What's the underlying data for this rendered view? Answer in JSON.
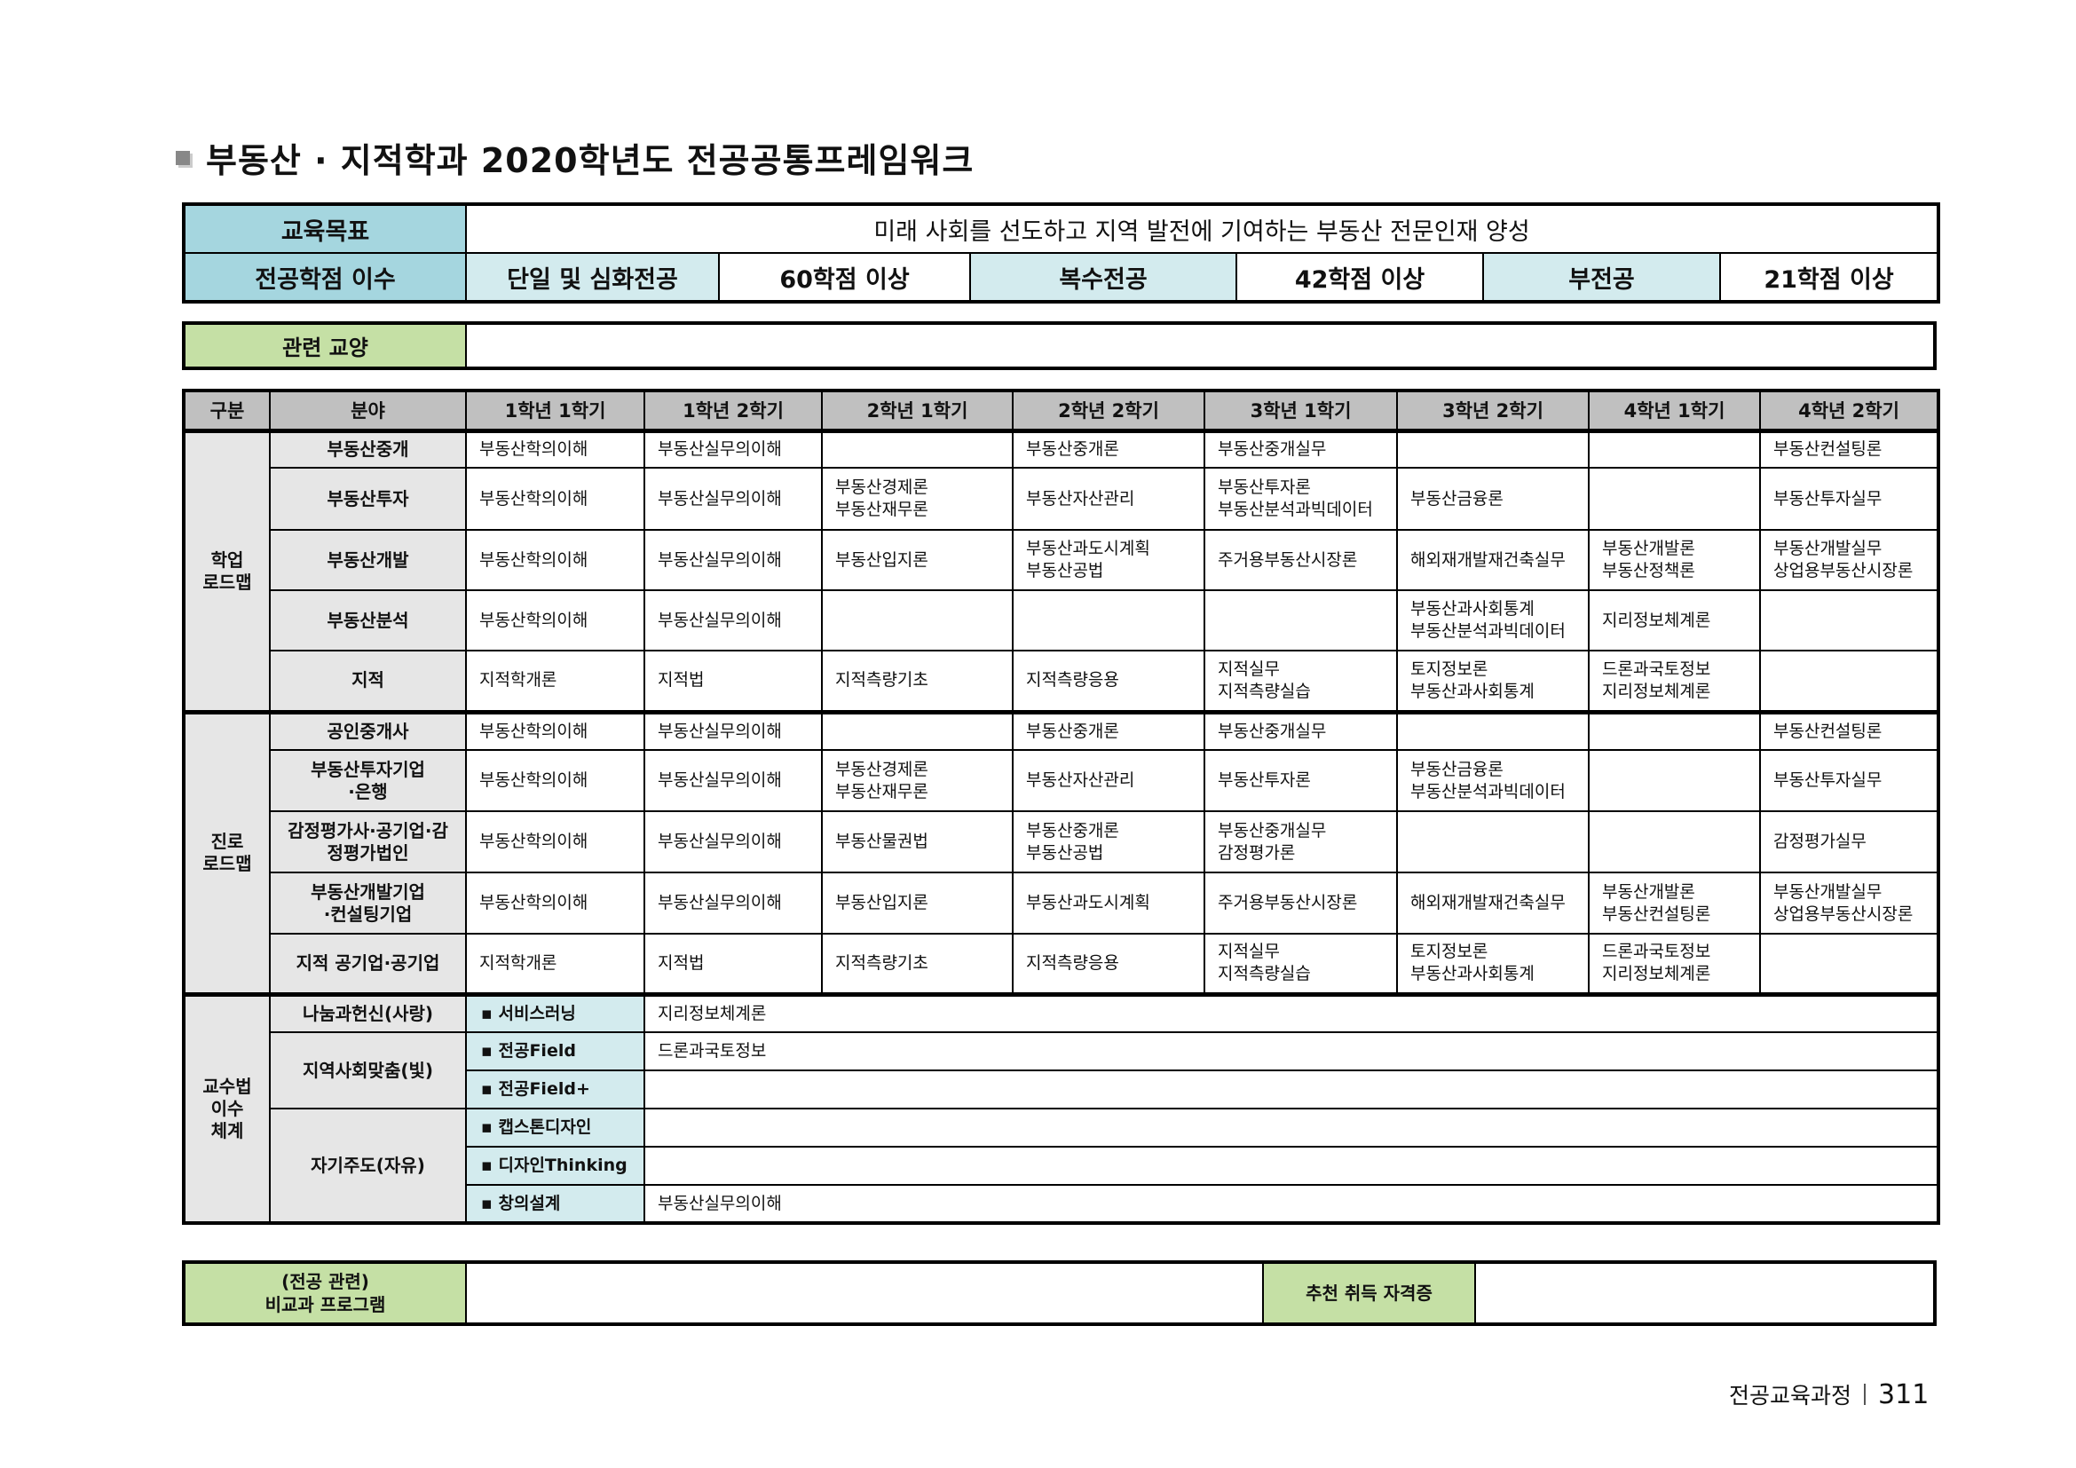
{
  "title": "부동산 · 지적학과 2020학년도 전공공통프레임워크",
  "goal": {
    "label": "교육목표",
    "text": "미래 사회를 선도하고 지역 발전에 기여하는 부동산 전문인재 양성"
  },
  "credits": {
    "label": "전공학점 이수",
    "items": [
      "단일 및 심화전공",
      "60학점 이상",
      "복수전공",
      "42학점 이상",
      "부전공",
      "21학점 이상"
    ]
  },
  "liberal": {
    "label": "관련 교양",
    "value": ""
  },
  "headers": [
    "구분",
    "분야",
    "1학년 1학기",
    "1학년 2학기",
    "2학년 1학기",
    "2학년 2학기",
    "3학년 1학기",
    "3학년 2학기",
    "4학년 1학기",
    "4학년 2학기"
  ],
  "groups": [
    {
      "label": "학업\n로드맵",
      "rows": [
        {
          "field": "부동산중개",
          "cells": [
            "부동산학의이해",
            "부동산실무의이해",
            "",
            "부동산중개론",
            "부동산중개실무",
            "",
            "",
            "부동산컨설팅론"
          ]
        },
        {
          "field": "부동산투자",
          "cells": [
            "부동산학의이해",
            "부동산실무의이해",
            "부동산경제론\n부동산재무론",
            "부동산자산관리",
            "부동산투자론\n부동산분석과빅데이터",
            "부동산금융론",
            "",
            "부동산투자실무"
          ]
        },
        {
          "field": "부동산개발",
          "cells": [
            "부동산학의이해",
            "부동산실무의이해",
            "부동산입지론",
            "부동산과도시계획\n부동산공법",
            "주거용부동산시장론",
            "해외재개발재건축실무",
            "부동산개발론\n부동산정책론",
            "부동산개발실무\n상업용부동산시장론"
          ]
        },
        {
          "field": "부동산분석",
          "cells": [
            "부동산학의이해",
            "부동산실무의이해",
            "",
            "",
            "",
            "부동산과사회통계\n부동산분석과빅데이터",
            "지리정보체계론",
            ""
          ]
        },
        {
          "field": "지적",
          "cells": [
            "지적학개론",
            "지적법",
            "지적측량기초",
            "지적측량응용",
            "지적실무\n지적측량실습",
            "토지정보론\n부동산과사회통계",
            "드론과국토정보\n지리정보체계론",
            ""
          ]
        }
      ]
    },
    {
      "label": "진로\n로드맵",
      "rows": [
        {
          "field": "공인중개사",
          "cells": [
            "부동산학의이해",
            "부동산실무의이해",
            "",
            "부동산중개론",
            "부동산중개실무",
            "",
            "",
            "부동산컨설팅론"
          ]
        },
        {
          "field": "부동산투자기업\n·은행",
          "cells": [
            "부동산학의이해",
            "부동산실무의이해",
            "부동산경제론\n부동산재무론",
            "부동산자산관리",
            "부동산투자론",
            "부동산금융론\n부동산분석과빅데이터",
            "",
            "부동산투자실무"
          ]
        },
        {
          "field": "감정평가사·공기업·감\n정평가법인",
          "cells": [
            "부동산학의이해",
            "부동산실무의이해",
            "부동산물권법",
            "부동산중개론\n부동산공법",
            "부동산중개실무\n감정평가론",
            "",
            "",
            "감정평가실무"
          ]
        },
        {
          "field": "부동산개발기업\n·컨설팅기업",
          "cells": [
            "부동산학의이해",
            "부동산실무의이해",
            "부동산입지론",
            "부동산과도시계획",
            "주거용부동산시장론",
            "해외재개발재건축실무",
            "부동산개발론\n부동산컨설팅론",
            "부동산개발실무\n상업용부동산시장론"
          ]
        },
        {
          "field": "지적 공기업·공기업",
          "cells": [
            "지적학개론",
            "지적법",
            "지적측량기초",
            "지적측량응용",
            "지적실무\n지적측량실습",
            "토지정보론\n부동산과사회통계",
            "드론과국토정보\n지리정보체계론",
            ""
          ]
        }
      ]
    }
  ],
  "pedagogy": {
    "label": "교수법\n이수\n체계",
    "rows": [
      {
        "field": "나눔과헌신(사랑)",
        "span": 1,
        "method": "▪ 서비스러닝",
        "course": "지리정보체계론"
      },
      {
        "field": "지역사회맞춤(빛)",
        "span": 2,
        "method": "▪ 전공Field",
        "course": "드론과국토정보"
      },
      {
        "method": "▪ 전공Field+",
        "course": ""
      },
      {
        "field": "자기주도(자유)",
        "span": 3,
        "method": "▪ 캡스톤디자인",
        "course": ""
      },
      {
        "method": "▪ 디자인Thinking",
        "course": ""
      },
      {
        "method": "▪ 창의설계",
        "course": "부동산실무의이해"
      }
    ]
  },
  "bottom": {
    "label": "(전공 관련)\n비교과 프로그램",
    "value": "",
    "cert_label": "추천 취득 자격증",
    "cert_value": ""
  },
  "footer": {
    "section": "전공교육과정",
    "page": "311"
  }
}
